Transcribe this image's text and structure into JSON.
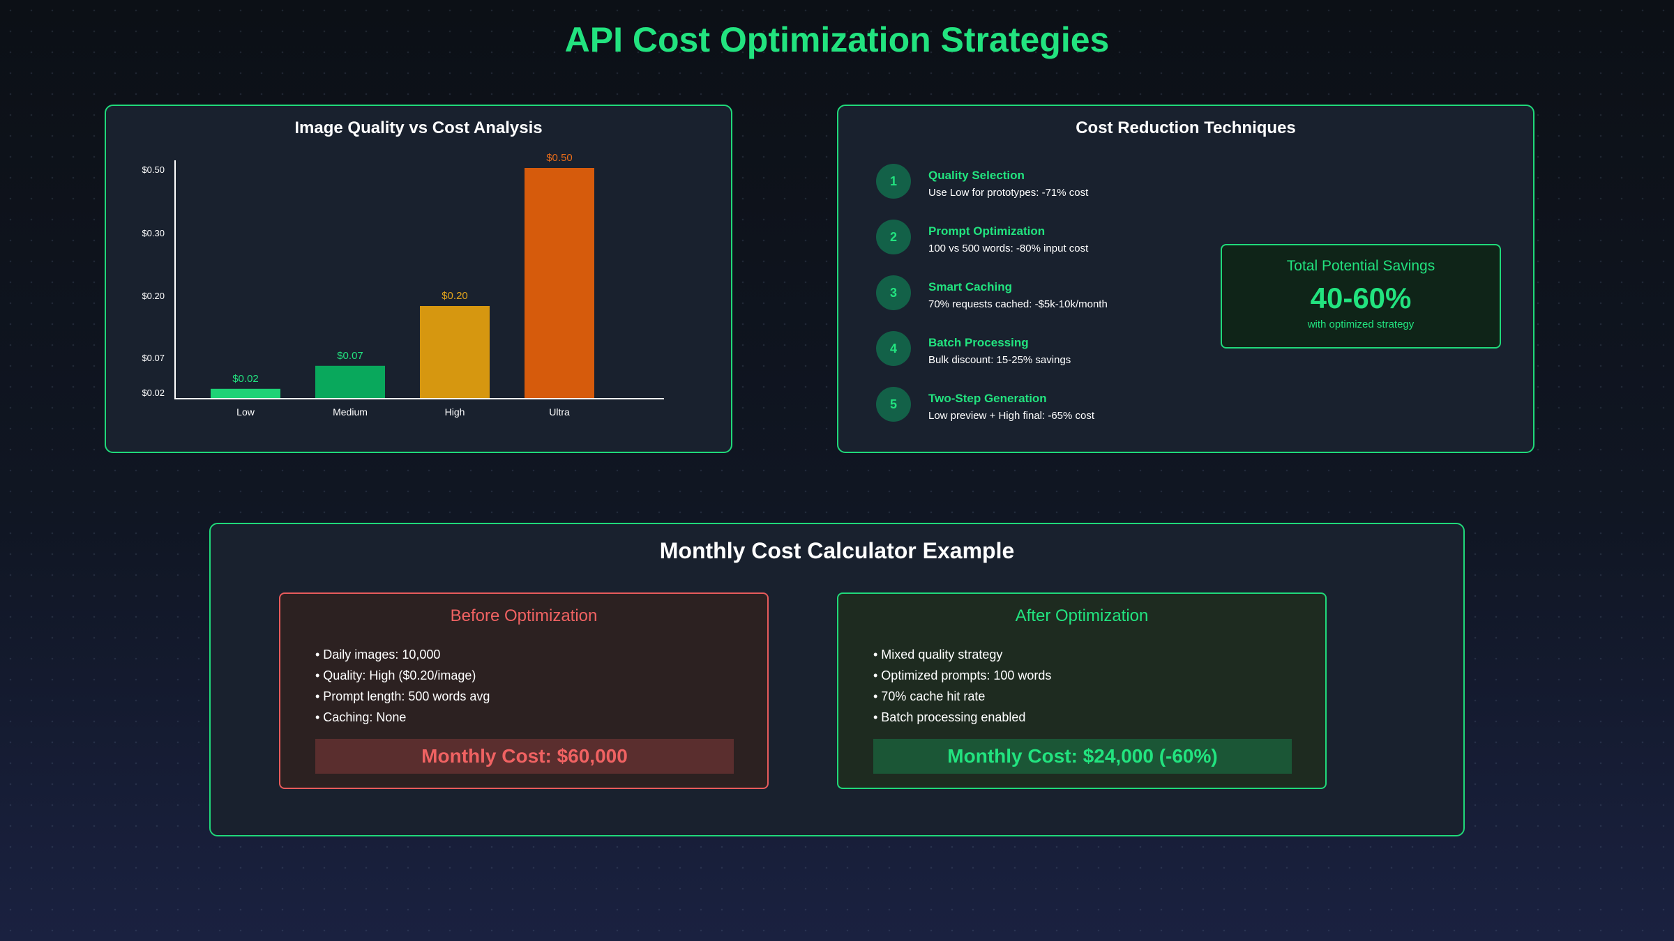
{
  "page": {
    "title": "API Cost Optimization Strategies"
  },
  "colors": {
    "accent": "#22e37f",
    "danger": "#f06262",
    "low": "#1ed276",
    "medium": "#09a85c",
    "high": "#d69710",
    "ultra": "#d65b0c"
  },
  "chart_data": {
    "type": "bar",
    "title": "Image Quality vs Cost Analysis",
    "categories": [
      "Low",
      "Medium",
      "High",
      "Ultra"
    ],
    "values": [
      0.02,
      0.07,
      0.2,
      0.5
    ],
    "value_labels": [
      "$0.02",
      "$0.07",
      "$0.20",
      "$0.50"
    ],
    "y_ticks": [
      0.02,
      0.07,
      0.2,
      0.3,
      0.5
    ],
    "y_tick_labels": [
      "$0.02",
      "$0.07",
      "$0.20",
      "$0.30",
      "$0.50"
    ],
    "bar_colors": [
      "#1ed276",
      "#09a85c",
      "#d69710",
      "#d65b0c"
    ],
    "value_label_colors": [
      "#22e37f",
      "#22e37f",
      "#e3a51c",
      "#e86c1a"
    ],
    "xlabel": "",
    "ylabel": "",
    "ylim": [
      0,
      0.5
    ],
    "grid": false,
    "legend": "none"
  },
  "techniques": {
    "title": "Cost Reduction Techniques",
    "items": [
      {
        "num": "1",
        "title": "Quality Selection",
        "desc": "Use Low for prototypes: -71% cost"
      },
      {
        "num": "2",
        "title": "Prompt Optimization",
        "desc": "100 vs 500 words: -80% input cost"
      },
      {
        "num": "3",
        "title": "Smart Caching",
        "desc": "70% requests cached: -$5k-10k/month"
      },
      {
        "num": "4",
        "title": "Batch Processing",
        "desc": "Bulk discount: 15-25% savings"
      },
      {
        "num": "5",
        "title": "Two-Step Generation",
        "desc": "Low preview + High final: -65% cost"
      }
    ],
    "savings": {
      "label": "Total Potential Savings",
      "value": "40-60%",
      "sub": "with optimized strategy"
    }
  },
  "calculator": {
    "title": "Monthly Cost Calculator Example",
    "before": {
      "title": "Before Optimization",
      "items": [
        "• Daily images: 10,000",
        "• Quality: High ($0.20/image)",
        "• Prompt length: 500 words avg",
        "• Caching: None"
      ],
      "cost": "Monthly Cost: $60,000"
    },
    "after": {
      "title": "After Optimization",
      "items": [
        "• Mixed quality strategy",
        "• Optimized prompts: 100 words",
        "• 70% cache hit rate",
        "• Batch processing enabled"
      ],
      "cost": "Monthly Cost: $24,000 (-60%)"
    }
  }
}
